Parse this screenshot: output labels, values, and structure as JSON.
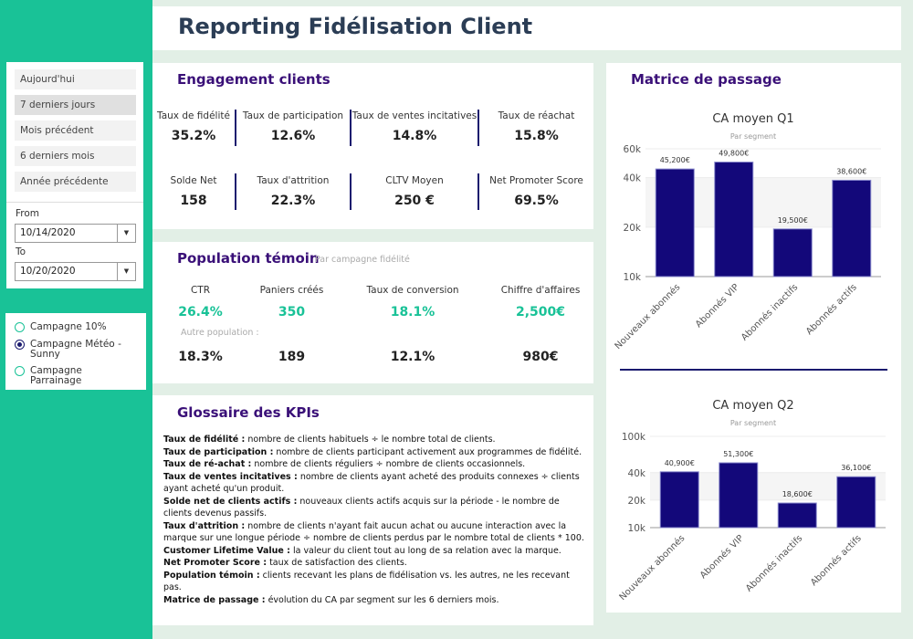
{
  "title": "Reporting Fidélisation Client",
  "date_filter": {
    "ranges": [
      "Aujourd'hui",
      "7 derniers jours",
      "Mois précédent",
      "6 derniers mois",
      "Année précédente"
    ],
    "selected_range": "7 derniers jours",
    "from_label": "From",
    "from_value": "10/14/2020",
    "to_label": "To",
    "to_value": "10/20/2020"
  },
  "campaigns": {
    "options": [
      "Campagne 10%",
      "Campagne Météo - Sunny",
      "Campagne Parrainage"
    ],
    "selected": "Campagne Météo - Sunny"
  },
  "engagement": {
    "title": "Engagement clients",
    "kpis": [
      {
        "label": "Taux de fidélité",
        "value": "35.2%"
      },
      {
        "label": "Taux de participation",
        "value": "12.6%"
      },
      {
        "label": "Taux de ventes incitatives",
        "value": "14.8%"
      },
      {
        "label": "Taux de réachat",
        "value": "15.8%"
      },
      {
        "label": "Solde Net",
        "value": "158"
      },
      {
        "label": "Taux d'attrition",
        "value": "22.3%"
      },
      {
        "label": "CLTV Moyen",
        "value": "250 €"
      },
      {
        "label": "Net Promoter Score",
        "value": "69.5%"
      }
    ]
  },
  "population": {
    "title": "Population témoin",
    "subtitle": "Par campagne fidélité",
    "headers": [
      "CTR",
      "Paniers créés",
      "Taux de conversion",
      "Chiffre d'affaires"
    ],
    "campaign_values": [
      "26.4%",
      "350",
      "18.1%",
      "2,500€"
    ],
    "other_label": "Autre population :",
    "other_values": [
      "18.3%",
      "189",
      "12.1%",
      "980€"
    ]
  },
  "glossary": {
    "title": "Glossaire des KPIs",
    "entries": [
      {
        "term": "Taux de fidélité :",
        "def": " nombre de clients habituels ÷ le nombre total de clients."
      },
      {
        "term": "Taux de participation :",
        "def": " nombre de clients participant activement aux programmes de fidélité."
      },
      {
        "term": "Taux de ré-achat :",
        "def": " nombre de clients réguliers ÷ nombre de clients occasionnels."
      },
      {
        "term": "Taux de ventes incitatives :",
        "def": " nombre de clients ayant acheté des produits connexes ÷ clients ayant acheté qu'un produit."
      },
      {
        "term": "Solde net de clients actifs :",
        "def": " nouveaux clients actifs acquis sur la période - le nombre de clients devenus passifs."
      },
      {
        "term": "Taux d'attrition :",
        "def": " nombre de clients n'ayant fait aucun achat ou aucune interaction avec la marque sur une longue période ÷ nombre de clients perdus par le nombre total de clients * 100."
      },
      {
        "term": "Customer Lifetime Value :",
        "def": " la valeur du client tout au long de sa relation avec la marque."
      },
      {
        "term": "Net Promoter Score :",
        "def": " taux de satisfaction des clients."
      },
      {
        "term": "Population témoin :",
        "def": " clients recevant les plans de fidélisation vs. les autres, ne les recevant pas."
      },
      {
        "term": "Matrice de passage :",
        "def": " évolution du CA par segment sur les 6 derniers mois."
      }
    ]
  },
  "matrix": {
    "title": "Matrice de passage"
  },
  "colors": {
    "accent": "#19c297",
    "bar": "#13087a",
    "title_text": "#3a1078"
  },
  "chart_data": [
    {
      "type": "bar",
      "title": "CA moyen Q1",
      "subtitle": "Par segment",
      "categories": [
        "Nouveaux abonnés",
        "Abonnés VIP",
        "Abonnés inactifs",
        "Abonnés actifs"
      ],
      "values": [
        45200,
        49800,
        19500,
        38600
      ],
      "value_labels": [
        "45,200€",
        "49,800€",
        "19,500€",
        "38,600€"
      ],
      "y_scale": "log",
      "ylim": [
        10000,
        60000
      ],
      "yticks": [
        10000,
        20000,
        40000,
        60000
      ],
      "ytick_labels": [
        "10k",
        "20k",
        "40k",
        "60k"
      ]
    },
    {
      "type": "bar",
      "title": "CA moyen Q2",
      "subtitle": "Par segment",
      "categories": [
        "Nouveaux abonnés",
        "Abonnés VIP",
        "Abonnés inactifs",
        "Abonnés actifs"
      ],
      "values": [
        40900,
        51300,
        18600,
        36100
      ],
      "value_labels": [
        "40,900€",
        "51,300€",
        "18,600€",
        "36,100€"
      ],
      "y_scale": "log",
      "ylim": [
        10000,
        100000
      ],
      "yticks": [
        10000,
        20000,
        40000,
        100000
      ],
      "ytick_labels": [
        "10k",
        "20k",
        "40k",
        "100k"
      ]
    }
  ]
}
